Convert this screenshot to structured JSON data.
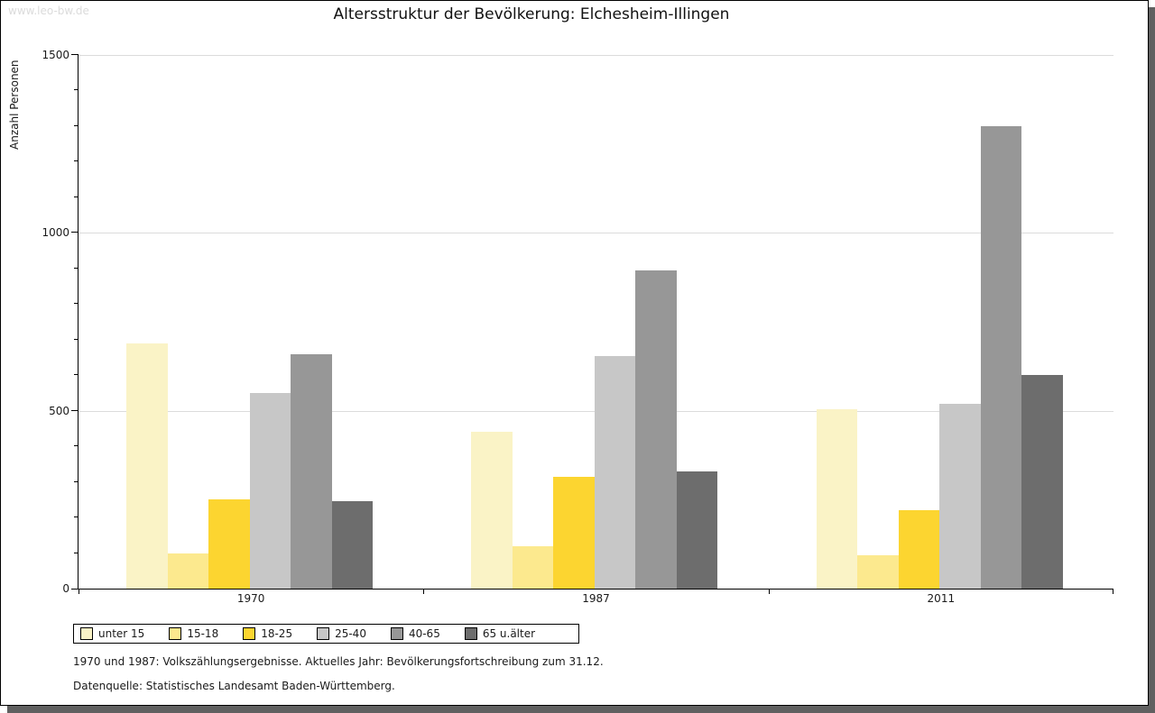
{
  "page": {
    "watermark": "www.leo-bw.de",
    "title": "Altersstruktur der Bevölkerung: Elchesheim-Illingen",
    "footnote1": "1970 und 1987: Volkszählungsergebnisse. Aktuelles Jahr: Bevölkerungsfortschreibung zum 31.12.",
    "footnote2": "Datenquelle: Statistisches Landesamt Baden-Württemberg."
  },
  "colors": {
    "page_background": "#FFFFFF",
    "page_border": "#000000",
    "drop_shadow": "#606060",
    "gridline": "#DCDCDC",
    "watermark_text": "#DBDBDB",
    "label_text": "#1A1A1A"
  },
  "chart_data": {
    "type": "bar",
    "title": "Altersstruktur der Bevölkerung: Elchesheim-Illingen",
    "xlabel": "",
    "ylabel": "Anzahl Personen",
    "categories": [
      "1970",
      "1987",
      "2011"
    ],
    "series": [
      {
        "name": "unter 15",
        "color": "#FAF3C6",
        "values": [
          690,
          440,
          505
        ]
      },
      {
        "name": "15-18",
        "color": "#FCE98E",
        "values": [
          100,
          120,
          95
        ]
      },
      {
        "name": "18-25",
        "color": "#FCD530",
        "values": [
          250,
          315,
          220
        ]
      },
      {
        "name": "25-40",
        "color": "#C7C7C7",
        "values": [
          550,
          655,
          520
        ]
      },
      {
        "name": "40-65",
        "color": "#979797",
        "values": [
          660,
          895,
          1300
        ]
      },
      {
        "name": "65 u.älter",
        "color": "#6D6D6D",
        "values": [
          245,
          330,
          600
        ]
      }
    ],
    "ylim": [
      0,
      1500
    ],
    "yticks": [
      0,
      500,
      1000,
      1500
    ],
    "minor_tick_step": 100,
    "grid": true,
    "legend_position": "bottom-left"
  }
}
